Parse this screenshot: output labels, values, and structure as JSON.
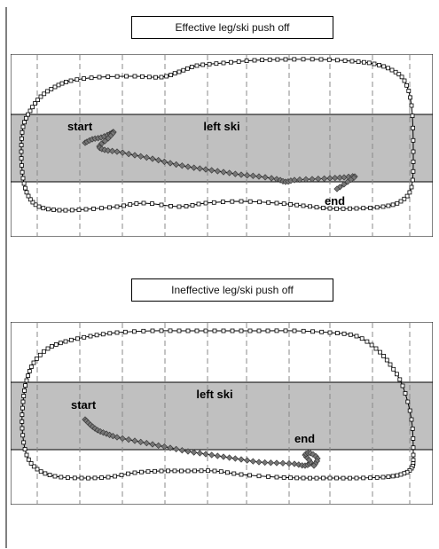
{
  "diagram": {
    "panels": [
      {
        "title": "Effective leg/ski push off",
        "ski_label": "left ski",
        "start_label": "start",
        "end_label": "end"
      },
      {
        "title": "Ineffective leg/ski push off",
        "ski_label": "left ski",
        "start_label": "start",
        "end_label": "end"
      }
    ],
    "colors": {
      "ski_band": "#c0c0c0",
      "gridline": "#888888",
      "trace": "#000000",
      "marker_fill": "#777777",
      "box_marker_fill": "#ffffff"
    }
  }
}
